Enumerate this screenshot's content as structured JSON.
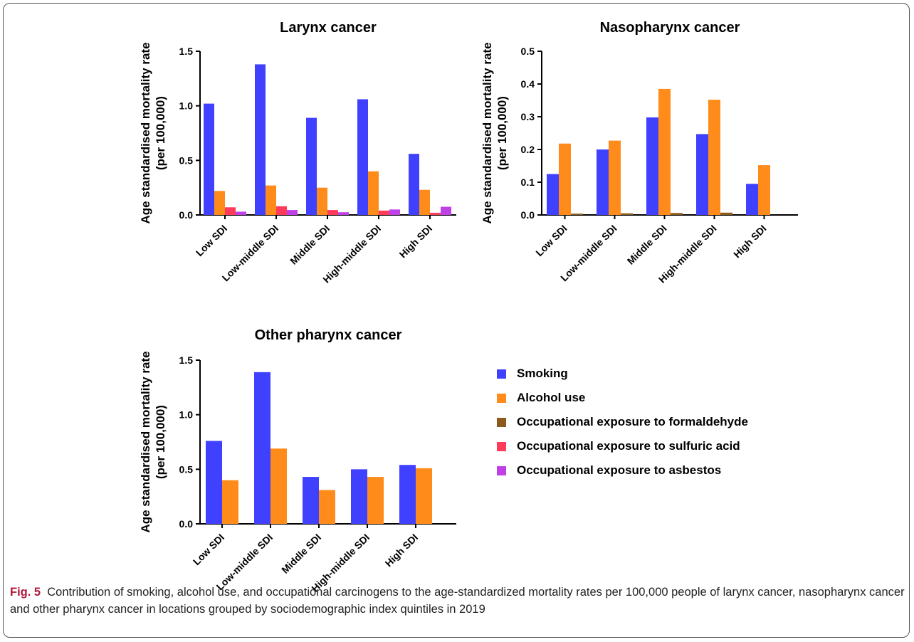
{
  "chart_data": [
    {
      "type": "bar",
      "title": "Larynx cancer",
      "ylabel": [
        "Age standardised mortality rate",
        "(per 100,000)"
      ],
      "ylim": [
        0,
        1.5
      ],
      "yticks": [
        "0.0",
        "0.5",
        "1.0",
        "1.5"
      ],
      "categories": [
        "Low SDI",
        "Low-middle SDI",
        "Middle SDI",
        "High-middle SDI",
        "High SDI"
      ],
      "series": [
        {
          "name": "Smoking",
          "color": "#4040ff",
          "values": [
            1.02,
            1.38,
            0.89,
            1.06,
            0.56
          ]
        },
        {
          "name": "Alcohol use",
          "color": "#ff8c1a",
          "values": [
            0.22,
            0.27,
            0.25,
            0.4,
            0.23
          ]
        },
        {
          "name": "Occupational exposure to sulfuric acid",
          "color": "#ff3b5c",
          "values": [
            0.07,
            0.08,
            0.045,
            0.04,
            0.02
          ]
        },
        {
          "name": "Occupational exposure to asbestos",
          "color": "#c040e8",
          "values": [
            0.03,
            0.045,
            0.025,
            0.05,
            0.075
          ]
        }
      ]
    },
    {
      "type": "bar",
      "title": "Nasopharynx cancer",
      "ylabel": [
        "Age standardised mortality rate",
        "(per 100,000)"
      ],
      "ylim": [
        0,
        0.5
      ],
      "yticks": [
        "0.0",
        "0.1",
        "0.2",
        "0.3",
        "0.4",
        "0.5"
      ],
      "categories": [
        "Low SDI",
        "Low-middle SDI",
        "Middle SDI",
        "High-middle SDI",
        "High SDI"
      ],
      "series": [
        {
          "name": "Smoking",
          "color": "#4040ff",
          "values": [
            0.125,
            0.2,
            0.298,
            0.247,
            0.095
          ]
        },
        {
          "name": "Alcohol use",
          "color": "#ff8c1a",
          "values": [
            0.218,
            0.227,
            0.385,
            0.352,
            0.152
          ]
        },
        {
          "name": "Occupational exposure to formaldehyde",
          "color": "#8c5a1a",
          "values": [
            0.004,
            0.005,
            0.006,
            0.007,
            0.0
          ]
        }
      ]
    },
    {
      "type": "bar",
      "title": "Other pharynx cancer",
      "ylabel": [
        "Age standardised mortality rate",
        "(per 100,000)"
      ],
      "ylim": [
        0,
        1.5
      ],
      "yticks": [
        "0.0",
        "0.5",
        "1.0",
        "1.5"
      ],
      "categories": [
        "Low SDI",
        "Low-middle SDI",
        "Middle SDI",
        "High-middle SDI",
        "High SDI"
      ],
      "series": [
        {
          "name": "Smoking",
          "color": "#4040ff",
          "values": [
            0.76,
            1.39,
            0.43,
            0.5,
            0.54
          ]
        },
        {
          "name": "Alcohol use",
          "color": "#ff8c1a",
          "values": [
            0.4,
            0.69,
            0.31,
            0.43,
            0.51
          ]
        }
      ]
    }
  ],
  "legend": {
    "items": [
      {
        "label": "Smoking",
        "color": "#4040ff"
      },
      {
        "label": "Alcohol use",
        "color": "#ff8c1a"
      },
      {
        "label": "Occupational exposure to formaldehyde",
        "color": "#8c5a1a"
      },
      {
        "label": "Occupational exposure to sulfuric acid",
        "color": "#ff3b5c"
      },
      {
        "label": "Occupational exposure to asbestos",
        "color": "#c040e8"
      }
    ]
  },
  "caption": {
    "label": "Fig. 5",
    "text": "Contribution of smoking, alcohol use, and occupational carcinogens to the age-standardized mortality rates per 100,000 people of larynx cancer, nasopharynx cancer and other pharynx cancer in locations grouped by sociodemographic index quintiles in 2019"
  }
}
